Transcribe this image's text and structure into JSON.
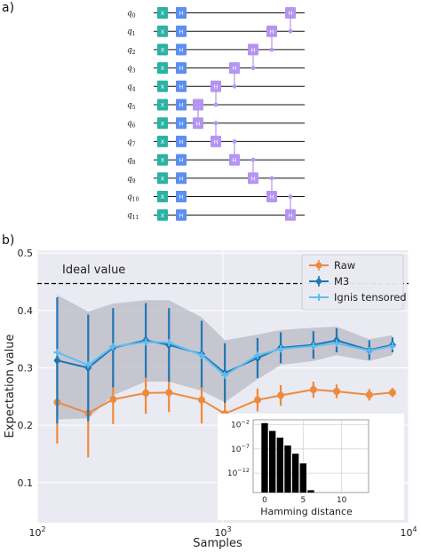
{
  "panel_labels": {
    "a": "a)",
    "b": "b)"
  },
  "circuit": {
    "qubits": [
      "q0",
      "q1",
      "q2",
      "q3",
      "q4",
      "q5",
      "q6",
      "q7",
      "q8",
      "q9",
      "q10",
      "q11"
    ],
    "gate_x_label": "X",
    "gate_h_label": "H",
    "colors": {
      "x_gate": "#2ab3a5",
      "h_gate": "#5b8ff0",
      "h_gate_ctrl": "#b595f2",
      "wire": "#111111"
    }
  },
  "chart_data": [
    {
      "type": "line",
      "xlabel": "Samples",
      "ylabel": "Expectation value",
      "xscale": "log",
      "xlim": [
        100,
        10000
      ],
      "ylim": [
        0.03,
        0.505
      ],
      "xticks": [
        100,
        1000,
        10000
      ],
      "xtick_labels": [
        {
          "base": "10",
          "exp": "2"
        },
        {
          "base": "10",
          "exp": "3"
        },
        {
          "base": "10",
          "exp": "4"
        }
      ],
      "yticks": [
        0.1,
        0.2,
        0.3,
        0.4,
        0.5
      ],
      "ytick_labels": [
        "0.1",
        "0.2",
        "0.3",
        "0.4",
        "0.5"
      ],
      "grid": true,
      "background": "#eaeaf2",
      "legend_position": "top-right",
      "ideal": {
        "value": 0.447,
        "label": "Ideal value"
      },
      "x": [
        128,
        188,
        256,
        384,
        512,
        768,
        1024,
        1536,
        2048,
        3072,
        4096,
        6144,
        8192
      ],
      "series": [
        {
          "name": "Raw",
          "color": "#ee8a3c",
          "marker": "circle",
          "values": [
            0.24,
            0.221,
            0.245,
            0.256,
            0.257,
            0.244,
            0.22,
            0.244,
            0.252,
            0.262,
            0.259,
            0.253,
            0.257
          ],
          "errors": [
            0.072,
            0.077,
            0.043,
            0.036,
            0.034,
            0.041,
            0.043,
            0.02,
            0.018,
            0.014,
            0.012,
            0.01,
            0.008
          ]
        },
        {
          "name": "M3",
          "color": "#1f77b4",
          "marker": "diamond",
          "values": [
            0.313,
            0.3,
            0.335,
            0.348,
            0.34,
            0.324,
            0.291,
            0.317,
            0.335,
            0.34,
            0.348,
            0.331,
            0.34
          ],
          "errors": [
            0.11,
            0.093,
            0.069,
            0.065,
            0.064,
            0.058,
            0.052,
            0.035,
            0.027,
            0.024,
            0.021,
            0.017,
            0.013
          ]
        },
        {
          "name": "Ignis tensored",
          "color": "#5ebfef",
          "marker": "plus",
          "values": [
            0.327,
            0.305,
            0.337,
            0.345,
            0.344,
            0.322,
            0.287,
            0.322,
            0.333,
            0.338,
            0.343,
            0.33,
            0.338
          ],
          "errors": []
        }
      ],
      "band": {
        "upper": [
          0.427,
          0.398,
          0.412,
          0.418,
          0.418,
          0.388,
          0.348,
          0.358,
          0.366,
          0.37,
          0.372,
          0.35,
          0.357
        ],
        "lower": [
          0.21,
          0.212,
          0.252,
          0.276,
          0.276,
          0.26,
          0.24,
          0.28,
          0.305,
          0.312,
          0.322,
          0.312,
          0.322
        ],
        "color": "#b8bac4"
      }
    },
    {
      "type": "bar",
      "xlabel": "Hamming distance",
      "yscale": "log",
      "xlim": [
        -1.5,
        13.5
      ],
      "ylim": [
        1e-16,
        0.1
      ],
      "xticks": [
        0,
        5,
        10
      ],
      "xtick_labels": [
        "0",
        "5",
        "10"
      ],
      "yticks": [
        0.01,
        1e-07,
        1e-12
      ],
      "ytick_labels": [
        {
          "base": "10",
          "exp": "−2"
        },
        {
          "base": "10",
          "exp": "−7"
        },
        {
          "base": "10",
          "exp": "−12"
        }
      ],
      "categories": [
        0,
        1,
        2,
        3,
        4,
        5,
        6
      ],
      "values": [
        0.02,
        0.0005,
        2e-05,
        5e-07,
        1e-08,
        1e-10,
        3e-16
      ],
      "color": "#000000"
    }
  ]
}
